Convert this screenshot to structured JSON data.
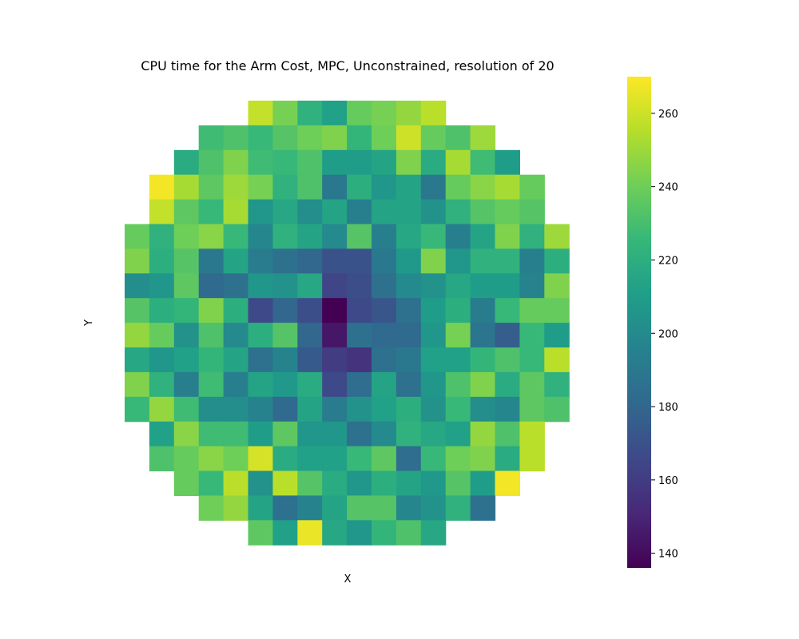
{
  "chart_data": {
    "type": "heatmap",
    "title": "CPU time for the Arm Cost, MPC, Unconstrained, resolution of 20",
    "xlabel": "X",
    "ylabel": "Y",
    "colormap": "viridis",
    "colorbar": {
      "vmin": 136,
      "vmax": 270,
      "ticks": [
        140,
        160,
        180,
        200,
        220,
        240,
        260
      ]
    },
    "grid": false,
    "rows": [
      {
        "start": 5,
        "values": [
          258,
          242,
          222,
          212,
          238,
          242,
          248,
          256
        ]
      },
      {
        "start": 3,
        "values": [
          228,
          232,
          226,
          234,
          240,
          244,
          224,
          240,
          260,
          238,
          232,
          250
        ]
      },
      {
        "start": 2,
        "values": [
          218,
          232,
          244,
          228,
          226,
          232,
          210,
          210,
          214,
          244,
          218,
          252,
          228,
          210
        ]
      },
      {
        "start": 1,
        "values": [
          268,
          252,
          236,
          250,
          242,
          222,
          232,
          190,
          220,
          206,
          214,
          190,
          238,
          246,
          252,
          238
        ]
      },
      {
        "start": 1,
        "values": [
          258,
          236,
          226,
          252,
          206,
          216,
          202,
          214,
          194,
          214,
          214,
          204,
          222,
          234,
          238,
          234
        ]
      },
      {
        "start": 0,
        "values": [
          238,
          222,
          240,
          246,
          226,
          198,
          222,
          214,
          200,
          234,
          194,
          216,
          226,
          194,
          214,
          244,
          222,
          250
        ]
      },
      {
        "start": 0,
        "values": [
          244,
          220,
          234,
          190,
          214,
          192,
          186,
          180,
          170,
          170,
          190,
          208,
          244,
          206,
          222,
          222,
          194,
          220
        ]
      },
      {
        "start": 0,
        "values": [
          202,
          206,
          236,
          182,
          186,
          206,
          204,
          216,
          164,
          168,
          186,
          200,
          204,
          216,
          210,
          210,
          196,
          244
        ]
      },
      {
        "start": 0,
        "values": [
          234,
          220,
          224,
          244,
          220,
          166,
          180,
          168,
          136,
          166,
          172,
          186,
          210,
          220,
          192,
          226,
          238,
          238
        ]
      },
      {
        "start": 0,
        "values": [
          248,
          238,
          204,
          232,
          200,
          220,
          234,
          180,
          144,
          186,
          182,
          182,
          206,
          242,
          188,
          176,
          226,
          210
        ]
      },
      {
        "start": 0,
        "values": [
          216,
          206,
          212,
          224,
          214,
          186,
          196,
          174,
          160,
          156,
          186,
          190,
          212,
          212,
          224,
          232,
          226,
          256
        ]
      },
      {
        "start": 0,
        "values": [
          244,
          222,
          194,
          228,
          194,
          214,
          208,
          218,
          166,
          184,
          214,
          186,
          206,
          232,
          244,
          218,
          236,
          222
        ]
      },
      {
        "start": 0,
        "values": [
          226,
          248,
          228,
          202,
          202,
          196,
          182,
          214,
          192,
          204,
          212,
          220,
          204,
          226,
          202,
          198,
          236,
          232
        ]
      },
      {
        "start": 1,
        "values": [
          212,
          246,
          228,
          228,
          210,
          236,
          206,
          206,
          186,
          200,
          222,
          216,
          212,
          248,
          232,
          256
        ]
      },
      {
        "start": 1,
        "values": [
          232,
          238,
          246,
          240,
          262,
          218,
          212,
          212,
          226,
          236,
          184,
          226,
          240,
          244,
          218,
          256
        ]
      },
      {
        "start": 2,
        "values": [
          238,
          226,
          256,
          204,
          256,
          234,
          218,
          206,
          220,
          214,
          208,
          234,
          210,
          268
        ]
      },
      {
        "start": 3,
        "values": [
          240,
          248,
          214,
          186,
          196,
          214,
          234,
          234,
          198,
          204,
          222,
          186
        ]
      },
      {
        "start": 5,
        "values": [
          236,
          212,
          266,
          216,
          206,
          224,
          232,
          216
        ]
      }
    ]
  }
}
